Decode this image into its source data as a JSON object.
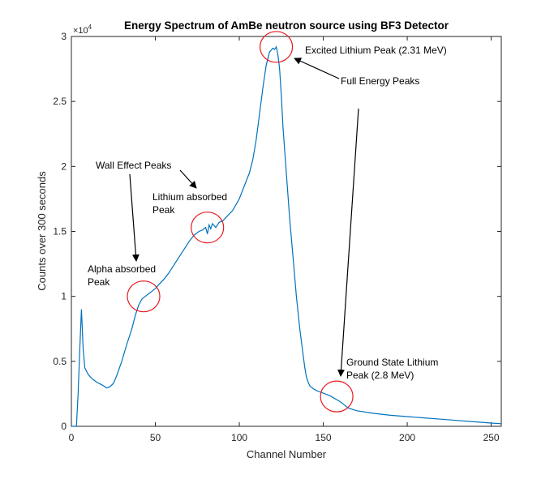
{
  "chart_data": {
    "type": "line",
    "title": "Energy Spectrum of AmBe neutron source using BF3 Detector",
    "xlabel": "Channel Number",
    "ylabel": "Counts over 300 seconds",
    "xlim": [
      0,
      256
    ],
    "ylim": [
      0,
      30000
    ],
    "y_exponent_label": "×10",
    "y_exponent_power": "4",
    "xticks": [
      0,
      50,
      100,
      150,
      200,
      250
    ],
    "yticks": [
      0,
      0.5,
      1,
      1.5,
      2,
      2.5,
      3
    ],
    "yticks_scaled_values": [
      0,
      5000,
      10000,
      15000,
      20000,
      25000,
      30000
    ],
    "grid": false,
    "line_color": "#0072BD",
    "circle_color": "#E8191F",
    "series": [
      {
        "x": [
          0,
          3,
          4,
          5,
          6,
          7,
          8,
          10,
          12,
          15,
          18,
          20,
          21,
          22,
          23,
          25,
          27,
          30,
          33,
          36,
          38,
          40,
          42,
          44,
          46,
          48,
          50,
          52,
          55,
          58,
          60,
          63,
          66,
          70,
          73,
          76,
          78,
          80,
          81,
          82,
          83,
          84,
          86,
          88,
          90,
          93,
          96,
          100,
          103,
          106,
          108,
          110,
          112,
          114,
          116,
          118,
          120,
          121,
          122,
          123,
          124,
          125,
          126,
          128,
          130,
          132,
          134,
          136,
          138,
          139,
          140,
          141,
          142,
          144,
          146,
          148,
          150,
          152,
          154,
          156,
          158,
          160,
          162,
          165,
          170,
          180,
          190,
          200,
          210,
          220,
          230,
          240,
          250,
          256
        ],
        "y": [
          0,
          0,
          2500,
          6000,
          9000,
          6000,
          4500,
          4000,
          3700,
          3400,
          3200,
          3050,
          2950,
          3000,
          3050,
          3300,
          3900,
          5000,
          6300,
          7500,
          8500,
          9300,
          9800,
          10000,
          10200,
          10400,
          10600,
          10900,
          11300,
          11800,
          12200,
          12800,
          13400,
          14200,
          14700,
          15000,
          15100,
          15300,
          14800,
          15500,
          15200,
          15600,
          15300,
          15700,
          15800,
          16200,
          16600,
          17500,
          18500,
          19500,
          20500,
          22000,
          24000,
          26000,
          27800,
          28800,
          29100,
          29000,
          29200,
          28600,
          27500,
          25500,
          23000,
          19500,
          16000,
          13000,
          10000,
          7500,
          5500,
          4500,
          3800,
          3400,
          3100,
          2900,
          2750,
          2650,
          2550,
          2450,
          2350,
          2200,
          2050,
          1900,
          1700,
          1400,
          1200,
          1000,
          850,
          750,
          650,
          550,
          450,
          350,
          250,
          200
        ]
      }
    ],
    "annotations": {
      "wall_effect": "Wall Effect Peaks",
      "lithium_absorbed_line1": "Lithium absorbed",
      "lithium_absorbed_line2": "Peak",
      "alpha_absorbed_line1": "Alpha absorbed",
      "alpha_absorbed_line2": "Peak",
      "excited_lithium": "Excited Lithium Peak (2.31 MeV)",
      "full_energy": "Full Energy Peaks",
      "ground_state_line1": "Ground State Lithium",
      "ground_state_line2": "Peak (2.8 MeV)"
    },
    "circled_points": [
      {
        "x": 43,
        "y": 10000
      },
      {
        "x": 81,
        "y": 15300
      },
      {
        "x": 122,
        "y": 29200
      },
      {
        "x": 158,
        "y": 2300
      }
    ]
  }
}
